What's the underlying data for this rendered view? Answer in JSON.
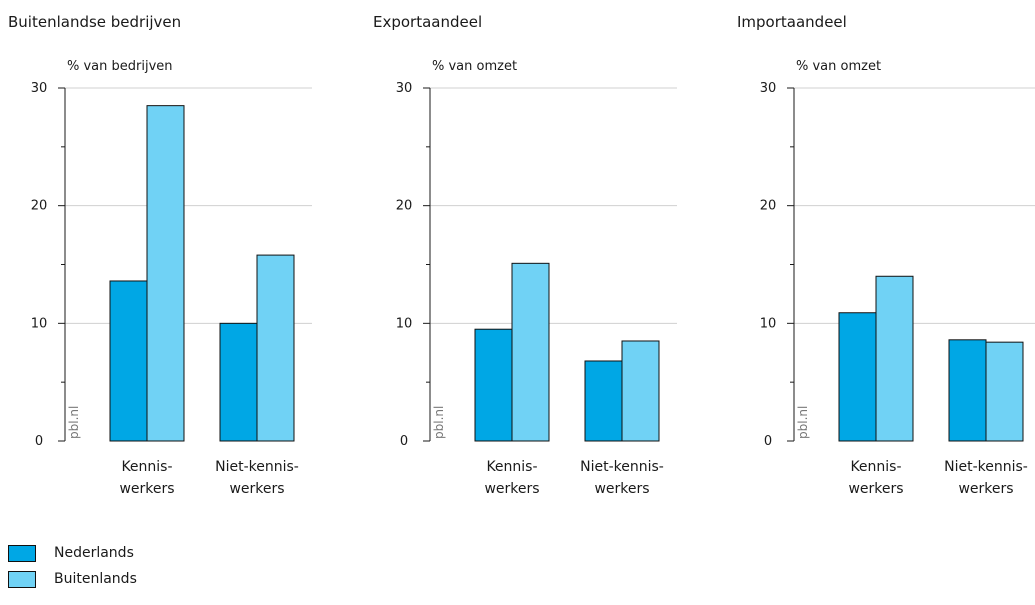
{
  "colors": {
    "nederlands": "#00a7e5",
    "buitenlands": "#70d2f5"
  },
  "chart_data": [
    {
      "type": "bar",
      "title": "Buitenlandse bedrijven",
      "ylabel": "% van bedrijven",
      "ylim": [
        0,
        30
      ],
      "yticks": [
        0,
        10,
        20,
        30
      ],
      "categories": [
        "Kennis-\nwerkers",
        "Niet-kennis-\nwerkers"
      ],
      "series": [
        {
          "name": "Nederlands",
          "values": [
            13.6,
            10.0
          ]
        },
        {
          "name": "Buitenlands",
          "values": [
            28.5,
            15.8
          ]
        }
      ],
      "source_label": "pbl.nl",
      "grid": true
    },
    {
      "type": "bar",
      "title": "Exportaandeel",
      "ylabel": "% van omzet",
      "ylim": [
        0,
        30
      ],
      "yticks": [
        0,
        10,
        20,
        30
      ],
      "categories": [
        "Kennis-\nwerkers",
        "Niet-kennis-\nwerkers"
      ],
      "series": [
        {
          "name": "Nederlands",
          "values": [
            9.5,
            6.8
          ]
        },
        {
          "name": "Buitenlands",
          "values": [
            15.1,
            8.5
          ]
        }
      ],
      "source_label": "pbl.nl",
      "grid": true
    },
    {
      "type": "bar",
      "title": "Importaandeel",
      "ylabel": "% van omzet",
      "ylim": [
        0,
        30
      ],
      "yticks": [
        0,
        10,
        20,
        30
      ],
      "categories": [
        "Kennis-\nwerkers",
        "Niet-kennis-\nwerkers"
      ],
      "series": [
        {
          "name": "Nederlands",
          "values": [
            10.9,
            8.6
          ]
        },
        {
          "name": "Buitenlands",
          "values": [
            14.0,
            8.4
          ]
        }
      ],
      "source_label": "pbl.nl",
      "grid": true
    }
  ],
  "legend": [
    {
      "label": "Nederlands",
      "color": "#00a7e5"
    },
    {
      "label": "Buitenlands",
      "color": "#70d2f5"
    }
  ]
}
